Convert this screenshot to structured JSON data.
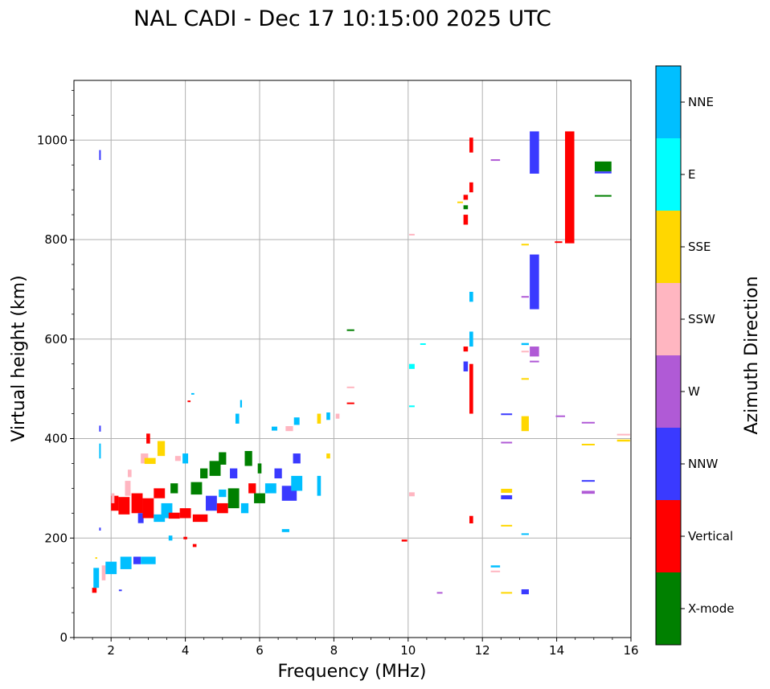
{
  "chart_data": {
    "type": "scatter",
    "title": "NAL CADI - Dec 17 10:15:00 2025 UTC",
    "xlabel": "Frequency (MHz)",
    "ylabel": "Virtual height (km)",
    "xlim": [
      1,
      16
    ],
    "ylim": [
      0,
      1120
    ],
    "xticks": [
      "2",
      "4",
      "6",
      "8",
      "10",
      "12",
      "14",
      "16"
    ],
    "yticks": [
      "0",
      "200",
      "400",
      "600",
      "800",
      "1000"
    ],
    "grid": true,
    "colorbar": {
      "label": "Azimuth Direction",
      "categories": [
        "X-mode",
        "Vertical",
        "NNW",
        "W",
        "SSW",
        "SSE",
        "E",
        "NNE"
      ],
      "colors": [
        "#008000",
        "#ff0000",
        "#3a3aff",
        "#b05ad6",
        "#ffb6c1",
        "#ffd700",
        "#00ffff",
        "#00bfff"
      ]
    },
    "echoes": [
      {
        "f": 1.55,
        "h": 95,
        "df": 0.12,
        "dh": 10,
        "c": "Vertical"
      },
      {
        "f": 1.6,
        "h": 120,
        "df": 0.15,
        "dh": 40,
        "c": "NNE"
      },
      {
        "f": 1.6,
        "h": 160,
        "df": 0.05,
        "dh": 3,
        "c": "SSE"
      },
      {
        "f": 1.7,
        "h": 970,
        "df": 0.04,
        "dh": 20,
        "c": "NNW"
      },
      {
        "f": 1.7,
        "h": 420,
        "df": 0.04,
        "dh": 12,
        "c": "NNW"
      },
      {
        "f": 1.7,
        "h": 375,
        "df": 0.04,
        "dh": 30,
        "c": "NNE"
      },
      {
        "f": 1.7,
        "h": 218,
        "df": 0.04,
        "dh": 6,
        "c": "NNW"
      },
      {
        "f": 1.8,
        "h": 130,
        "df": 0.1,
        "dh": 30,
        "c": "SSW"
      },
      {
        "f": 2.0,
        "h": 140,
        "df": 0.3,
        "dh": 25,
        "c": "NNE"
      },
      {
        "f": 2.1,
        "h": 270,
        "df": 0.2,
        "dh": 30,
        "c": "Vertical"
      },
      {
        "f": 2.05,
        "h": 280,
        "df": 0.08,
        "dh": 20,
        "c": "SSW"
      },
      {
        "f": 2.25,
        "h": 95,
        "df": 0.08,
        "dh": 3,
        "c": "NNW"
      },
      {
        "f": 2.4,
        "h": 150,
        "df": 0.3,
        "dh": 25,
        "c": "NNE"
      },
      {
        "f": 2.35,
        "h": 265,
        "df": 0.3,
        "dh": 35,
        "c": "Vertical"
      },
      {
        "f": 2.45,
        "h": 300,
        "df": 0.15,
        "dh": 30,
        "c": "SSW"
      },
      {
        "f": 2.5,
        "h": 330,
        "df": 0.1,
        "dh": 15,
        "c": "SSW"
      },
      {
        "f": 2.7,
        "h": 155,
        "df": 0.2,
        "dh": 15,
        "c": "NNW"
      },
      {
        "f": 2.7,
        "h": 270,
        "df": 0.3,
        "dh": 40,
        "c": "Vertical"
      },
      {
        "f": 2.8,
        "h": 240,
        "df": 0.15,
        "dh": 20,
        "c": "NNW"
      },
      {
        "f": 2.9,
        "h": 360,
        "df": 0.2,
        "dh": 20,
        "c": "SSW"
      },
      {
        "f": 3.0,
        "h": 260,
        "df": 0.3,
        "dh": 40,
        "c": "Vertical"
      },
      {
        "f": 3.05,
        "h": 355,
        "df": 0.3,
        "dh": 12,
        "c": "SSE"
      },
      {
        "f": 3.0,
        "h": 400,
        "df": 0.1,
        "dh": 20,
        "c": "Vertical"
      },
      {
        "f": 3.0,
        "h": 155,
        "df": 0.4,
        "dh": 15,
        "c": "NNE"
      },
      {
        "f": 3.3,
        "h": 240,
        "df": 0.3,
        "dh": 15,
        "c": "NNE"
      },
      {
        "f": 3.3,
        "h": 290,
        "df": 0.3,
        "dh": 20,
        "c": "Vertical"
      },
      {
        "f": 3.35,
        "h": 380,
        "df": 0.2,
        "dh": 30,
        "c": "SSE"
      },
      {
        "f": 3.5,
        "h": 255,
        "df": 0.3,
        "dh": 30,
        "c": "NNE"
      },
      {
        "f": 3.6,
        "h": 200,
        "df": 0.1,
        "dh": 10,
        "c": "NNE"
      },
      {
        "f": 3.7,
        "h": 245,
        "df": 0.3,
        "dh": 12,
        "c": "Vertical"
      },
      {
        "f": 3.7,
        "h": 300,
        "df": 0.2,
        "dh": 20,
        "c": "X-mode"
      },
      {
        "f": 3.8,
        "h": 360,
        "df": 0.15,
        "dh": 10,
        "c": "SSW"
      },
      {
        "f": 4.0,
        "h": 200,
        "df": 0.1,
        "dh": 5,
        "c": "Vertical"
      },
      {
        "f": 4.0,
        "h": 250,
        "df": 0.3,
        "dh": 20,
        "c": "Vertical"
      },
      {
        "f": 4.0,
        "h": 360,
        "df": 0.15,
        "dh": 20,
        "c": "NNE"
      },
      {
        "f": 4.1,
        "h": 475,
        "df": 0.08,
        "dh": 3,
        "c": "Vertical"
      },
      {
        "f": 4.2,
        "h": 490,
        "df": 0.08,
        "dh": 3,
        "c": "NNE"
      },
      {
        "f": 4.25,
        "h": 185,
        "df": 0.1,
        "dh": 6,
        "c": "Vertical"
      },
      {
        "f": 4.3,
        "h": 300,
        "df": 0.3,
        "dh": 25,
        "c": "X-mode"
      },
      {
        "f": 4.4,
        "h": 240,
        "df": 0.4,
        "dh": 15,
        "c": "Vertical"
      },
      {
        "f": 4.5,
        "h": 330,
        "df": 0.2,
        "dh": 20,
        "c": "X-mode"
      },
      {
        "f": 4.7,
        "h": 270,
        "df": 0.3,
        "dh": 30,
        "c": "NNW"
      },
      {
        "f": 4.8,
        "h": 340,
        "df": 0.3,
        "dh": 30,
        "c": "X-mode"
      },
      {
        "f": 5.0,
        "h": 360,
        "df": 0.2,
        "dh": 25,
        "c": "X-mode"
      },
      {
        "f": 5.0,
        "h": 260,
        "df": 0.3,
        "dh": 20,
        "c": "Vertical"
      },
      {
        "f": 5.0,
        "h": 290,
        "df": 0.2,
        "dh": 15,
        "c": "NNE"
      },
      {
        "f": 5.3,
        "h": 280,
        "df": 0.3,
        "dh": 40,
        "c": "X-mode"
      },
      {
        "f": 5.3,
        "h": 330,
        "df": 0.2,
        "dh": 20,
        "c": "NNW"
      },
      {
        "f": 5.4,
        "h": 440,
        "df": 0.1,
        "dh": 20,
        "c": "NNE"
      },
      {
        "f": 5.5,
        "h": 470,
        "df": 0.05,
        "dh": 15,
        "c": "NNE"
      },
      {
        "f": 5.6,
        "h": 260,
        "df": 0.2,
        "dh": 20,
        "c": "NNE"
      },
      {
        "f": 5.7,
        "h": 360,
        "df": 0.2,
        "dh": 30,
        "c": "X-mode"
      },
      {
        "f": 5.8,
        "h": 300,
        "df": 0.2,
        "dh": 20,
        "c": "Vertical"
      },
      {
        "f": 6.0,
        "h": 280,
        "df": 0.3,
        "dh": 20,
        "c": "X-mode"
      },
      {
        "f": 6.0,
        "h": 340,
        "df": 0.1,
        "dh": 20,
        "c": "X-mode"
      },
      {
        "f": 6.3,
        "h": 300,
        "df": 0.3,
        "dh": 20,
        "c": "NNE"
      },
      {
        "f": 6.4,
        "h": 420,
        "df": 0.15,
        "dh": 8,
        "c": "NNE"
      },
      {
        "f": 6.5,
        "h": 330,
        "df": 0.2,
        "dh": 20,
        "c": "NNW"
      },
      {
        "f": 6.7,
        "h": 215,
        "df": 0.2,
        "dh": 6,
        "c": "NNE"
      },
      {
        "f": 6.8,
        "h": 290,
        "df": 0.4,
        "dh": 30,
        "c": "NNW"
      },
      {
        "f": 6.8,
        "h": 420,
        "df": 0.2,
        "dh": 10,
        "c": "SSW"
      },
      {
        "f": 7.0,
        "h": 310,
        "df": 0.3,
        "dh": 30,
        "c": "NNE"
      },
      {
        "f": 7.0,
        "h": 360,
        "df": 0.2,
        "dh": 20,
        "c": "NNW"
      },
      {
        "f": 7.0,
        "h": 435,
        "df": 0.15,
        "dh": 15,
        "c": "NNE"
      },
      {
        "f": 7.6,
        "h": 305,
        "df": 0.1,
        "dh": 40,
        "c": "NNE"
      },
      {
        "f": 7.6,
        "h": 440,
        "df": 0.1,
        "dh": 20,
        "c": "SSE"
      },
      {
        "f": 7.85,
        "h": 365,
        "df": 0.1,
        "dh": 10,
        "c": "SSE"
      },
      {
        "f": 7.85,
        "h": 445,
        "df": 0.1,
        "dh": 15,
        "c": "NNE"
      },
      {
        "f": 8.1,
        "h": 445,
        "df": 0.1,
        "dh": 10,
        "c": "SSW"
      },
      {
        "f": 8.45,
        "h": 618,
        "df": 0.2,
        "dh": 3,
        "c": "X-mode"
      },
      {
        "f": 8.45,
        "h": 503,
        "df": 0.2,
        "dh": 3,
        "c": "SSW"
      },
      {
        "f": 8.45,
        "h": 471,
        "df": 0.2,
        "dh": 3,
        "c": "Vertical"
      },
      {
        "f": 9.9,
        "h": 195,
        "df": 0.15,
        "dh": 4,
        "c": "Vertical"
      },
      {
        "f": 10.1,
        "h": 810,
        "df": 0.15,
        "dh": 3,
        "c": "SSW"
      },
      {
        "f": 10.1,
        "h": 545,
        "df": 0.15,
        "dh": 10,
        "c": "E"
      },
      {
        "f": 10.1,
        "h": 465,
        "df": 0.15,
        "dh": 3,
        "c": "E"
      },
      {
        "f": 10.1,
        "h": 288,
        "df": 0.15,
        "dh": 8,
        "c": "SSW"
      },
      {
        "f": 10.85,
        "h": 90,
        "df": 0.15,
        "dh": 3,
        "c": "W"
      },
      {
        "f": 10.4,
        "h": 590,
        "df": 0.15,
        "dh": 3,
        "c": "E"
      },
      {
        "f": 11.4,
        "h": 875,
        "df": 0.15,
        "dh": 3,
        "c": "SSE"
      },
      {
        "f": 11.55,
        "h": 885,
        "df": 0.12,
        "dh": 10,
        "c": "Vertical"
      },
      {
        "f": 11.55,
        "h": 865,
        "df": 0.12,
        "dh": 8,
        "c": "X-mode"
      },
      {
        "f": 11.55,
        "h": 840,
        "df": 0.12,
        "dh": 20,
        "c": "Vertical"
      },
      {
        "f": 11.55,
        "h": 580,
        "df": 0.12,
        "dh": 10,
        "c": "Vertical"
      },
      {
        "f": 11.55,
        "h": 545,
        "df": 0.12,
        "dh": 20,
        "c": "NNW"
      },
      {
        "f": 11.7,
        "h": 990,
        "df": 0.1,
        "dh": 30,
        "c": "Vertical"
      },
      {
        "f": 11.7,
        "h": 905,
        "df": 0.1,
        "dh": 20,
        "c": "Vertical"
      },
      {
        "f": 11.7,
        "h": 685,
        "df": 0.1,
        "dh": 20,
        "c": "NNE"
      },
      {
        "f": 11.7,
        "h": 600,
        "df": 0.1,
        "dh": 30,
        "c": "NNE"
      },
      {
        "f": 11.7,
        "h": 500,
        "df": 0.1,
        "dh": 100,
        "c": "Vertical"
      },
      {
        "f": 11.7,
        "h": 237,
        "df": 0.1,
        "dh": 15,
        "c": "Vertical"
      },
      {
        "f": 12.35,
        "h": 960,
        "df": 0.25,
        "dh": 3,
        "c": "W"
      },
      {
        "f": 12.35,
        "h": 143,
        "df": 0.25,
        "dh": 4,
        "c": "NNE"
      },
      {
        "f": 12.35,
        "h": 133,
        "df": 0.25,
        "dh": 3,
        "c": "SSW"
      },
      {
        "f": 12.65,
        "h": 449,
        "df": 0.3,
        "dh": 3,
        "c": "NNW"
      },
      {
        "f": 12.65,
        "h": 392,
        "df": 0.3,
        "dh": 3,
        "c": "W"
      },
      {
        "f": 12.65,
        "h": 295,
        "df": 0.3,
        "dh": 8,
        "c": "SSE"
      },
      {
        "f": 12.65,
        "h": 282,
        "df": 0.3,
        "dh": 8,
        "c": "NNW"
      },
      {
        "f": 12.65,
        "h": 225,
        "df": 0.3,
        "dh": 3,
        "c": "SSE"
      },
      {
        "f": 12.65,
        "h": 90,
        "df": 0.3,
        "dh": 3,
        "c": "SSE"
      },
      {
        "f": 13.15,
        "h": 790,
        "df": 0.2,
        "dh": 3,
        "c": "SSE"
      },
      {
        "f": 13.15,
        "h": 685,
        "df": 0.2,
        "dh": 3,
        "c": "W"
      },
      {
        "f": 13.15,
        "h": 590,
        "df": 0.2,
        "dh": 4,
        "c": "NNE"
      },
      {
        "f": 13.15,
        "h": 575,
        "df": 0.2,
        "dh": 3,
        "c": "SSW"
      },
      {
        "f": 13.15,
        "h": 520,
        "df": 0.2,
        "dh": 3,
        "c": "SSE"
      },
      {
        "f": 13.15,
        "h": 430,
        "df": 0.2,
        "dh": 30,
        "c": "SSE"
      },
      {
        "f": 13.15,
        "h": 208,
        "df": 0.2,
        "dh": 3,
        "c": "NNE"
      },
      {
        "f": 13.15,
        "h": 92,
        "df": 0.2,
        "dh": 10,
        "c": "NNW"
      },
      {
        "f": 13.4,
        "h": 975,
        "df": 0.25,
        "dh": 85,
        "c": "NNW"
      },
      {
        "f": 13.4,
        "h": 715,
        "df": 0.25,
        "dh": 110,
        "c": "NNW"
      },
      {
        "f": 13.4,
        "h": 575,
        "df": 0.25,
        "dh": 20,
        "c": "W"
      },
      {
        "f": 13.4,
        "h": 555,
        "df": 0.25,
        "dh": 3,
        "c": "W"
      },
      {
        "f": 14.35,
        "h": 905,
        "df": 0.25,
        "dh": 225,
        "c": "Vertical"
      },
      {
        "f": 14.05,
        "h": 795,
        "df": 0.2,
        "dh": 3,
        "c": "Vertical"
      },
      {
        "f": 14.1,
        "h": 445,
        "df": 0.25,
        "dh": 3,
        "c": "W"
      },
      {
        "f": 14.85,
        "h": 432,
        "df": 0.35,
        "dh": 3,
        "c": "W"
      },
      {
        "f": 14.85,
        "h": 388,
        "df": 0.35,
        "dh": 3,
        "c": "SSE"
      },
      {
        "f": 14.85,
        "h": 315,
        "df": 0.35,
        "dh": 3,
        "c": "NNW"
      },
      {
        "f": 14.85,
        "h": 292,
        "df": 0.35,
        "dh": 6,
        "c": "W"
      },
      {
        "f": 15.25,
        "h": 947,
        "df": 0.45,
        "dh": 20,
        "c": "X-mode"
      },
      {
        "f": 15.25,
        "h": 935,
        "df": 0.45,
        "dh": 4,
        "c": "NNW"
      },
      {
        "f": 15.25,
        "h": 888,
        "df": 0.45,
        "dh": 3,
        "c": "X-mode"
      },
      {
        "f": 15.8,
        "h": 408,
        "df": 0.35,
        "dh": 3,
        "c": "SSW"
      },
      {
        "f": 15.8,
        "h": 396,
        "df": 0.35,
        "dh": 4,
        "c": "SSE"
      }
    ]
  }
}
